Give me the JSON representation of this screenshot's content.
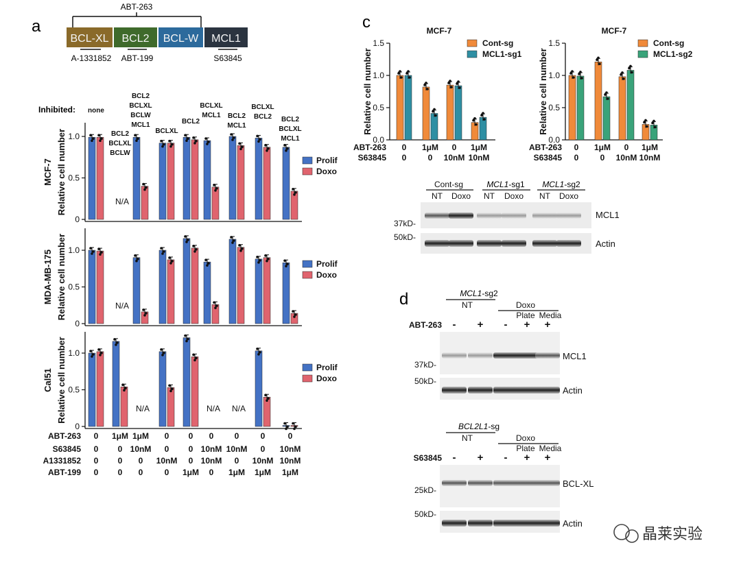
{
  "panels": {
    "a": "a",
    "c": "c",
    "d": "d"
  },
  "target_diagram": {
    "drug_top": "ABT-263",
    "proteins": [
      {
        "label": "BCL-XL",
        "color": "#8a6a2a"
      },
      {
        "label": "BCL2",
        "color": "#3f6a2b"
      },
      {
        "label": "BCL-W",
        "color": "#2c6a9c"
      },
      {
        "label": "MCL1",
        "color": "#2b3440"
      }
    ],
    "drug_bottom": [
      "A-1331852",
      "ABT-199",
      "S63845"
    ]
  },
  "colors": {
    "prolif": "#4472c4",
    "doxo": "#e0646e",
    "cont": "#f08a3a",
    "sg1": "#2f8fa3",
    "sg2": "#3aa37a"
  },
  "inhibited_label": "Inhibited:",
  "inhibited": [
    "none",
    "BCL2\nBCLXL\nBCLW",
    "BCL2\nBCLXL\nBCLW\nMCL1",
    "BCLXL",
    "BCL2",
    "BCLXL\nMCL1",
    "BCL2\nMCL1",
    "BCLXL\nBCL2",
    "BCL2\nBCLXL\nMCL1"
  ],
  "legend_a": [
    "Prolif",
    "Doxo"
  ],
  "ylabel_a": "Relative cell number",
  "na": "N/A",
  "conditions_a": {
    "rows": [
      "ABT-263",
      "S63845",
      "A1331852",
      "ABT-199"
    ],
    "values": [
      [
        "0",
        "1μM",
        "1μM",
        "0",
        "0",
        "0",
        "0",
        "0",
        "0"
      ],
      [
        "0",
        "0",
        "10nM",
        "0",
        "0",
        "10nM",
        "10nM",
        "0",
        "10nM"
      ],
      [
        "0",
        "0",
        "0",
        "10nM",
        "0",
        "10nM",
        "0",
        "10nM",
        "10nM"
      ],
      [
        "0",
        "0",
        "0",
        "0",
        "1μM",
        "0",
        "1μM",
        "1μM",
        "1μM"
      ]
    ]
  },
  "chart_data": [
    {
      "type": "bar",
      "title": "MCF-7",
      "ylabel": "Relative cell number",
      "ylim": [
        0,
        1.1
      ],
      "yticks": [
        "0",
        "0.5",
        "1.0"
      ],
      "series": [
        {
          "name": "Prolif",
          "values": [
            0.99,
            null,
            0.99,
            0.92,
            0.99,
            0.95,
            1.0,
            0.98,
            0.87
          ]
        },
        {
          "name": "Doxo",
          "values": [
            0.99,
            null,
            0.4,
            0.92,
            0.96,
            0.39,
            0.89,
            0.87,
            0.34
          ]
        }
      ]
    },
    {
      "type": "bar",
      "title": "MDA-MB-175",
      "ylabel": "Relative cell number",
      "ylim": [
        0,
        1.3
      ],
      "yticks": [
        "0",
        "0.5",
        "1.0"
      ],
      "series": [
        {
          "name": "Prolif",
          "values": [
            1.0,
            null,
            0.9,
            1.0,
            1.16,
            0.84,
            1.15,
            0.88,
            0.83
          ]
        },
        {
          "name": "Doxo",
          "values": [
            0.99,
            null,
            0.16,
            0.87,
            1.03,
            0.26,
            1.04,
            0.9,
            0.14
          ]
        }
      ]
    },
    {
      "type": "bar",
      "title": "Cal51",
      "ylabel": "Relative cell number",
      "ylim": [
        0,
        1.3
      ],
      "yticks": [
        "0",
        "0.5",
        "1.0"
      ],
      "series": [
        {
          "name": "Prolif",
          "values": [
            1.0,
            1.16,
            null,
            1.02,
            1.21,
            null,
            null,
            1.03,
            0.0
          ]
        },
        {
          "name": "Doxo",
          "values": [
            1.02,
            0.54,
            null,
            0.53,
            0.95,
            null,
            null,
            0.4,
            0.0
          ]
        }
      ]
    },
    {
      "type": "bar",
      "title": "MCF-7",
      "ylabel": "Relative cell number",
      "ylim": [
        0,
        1.5
      ],
      "yticks": [
        "0.0",
        "0.5",
        "1.0",
        "1.5"
      ],
      "legend": [
        "Cont-sg",
        "MCL1-sg1"
      ],
      "series": [
        {
          "name": "Cont-sg",
          "values": [
            1.0,
            0.82,
            0.85,
            0.27
          ]
        },
        {
          "name": "MCL1-sg1",
          "values": [
            1.0,
            0.41,
            0.84,
            0.35
          ]
        }
      ],
      "conditions": {
        "rows": [
          "ABT-263",
          "S63845"
        ],
        "values": [
          [
            "0",
            "1μM",
            "0",
            "1μM"
          ],
          [
            "0",
            "0",
            "10nM",
            "10nM"
          ]
        ]
      }
    },
    {
      "type": "bar",
      "title": "MCF-7",
      "ylabel": "Relative cell number",
      "ylim": [
        0,
        1.5
      ],
      "yticks": [
        "0.0",
        "0.5",
        "1.0",
        "1.5"
      ],
      "legend": [
        "Cont-sg",
        "MCL1-sg2"
      ],
      "series": [
        {
          "name": "Cont-sg",
          "values": [
            1.0,
            1.21,
            0.98,
            0.24
          ]
        },
        {
          "name": "MCL1-sg2",
          "values": [
            0.99,
            0.67,
            1.08,
            0.23
          ]
        }
      ],
      "conditions": {
        "rows": [
          "ABT-263",
          "S63845"
        ],
        "values": [
          [
            "0",
            "1μM",
            "0",
            "1μM"
          ],
          [
            "0",
            "0",
            "10nM",
            "10nM"
          ]
        ]
      }
    }
  ],
  "blot_c": {
    "groups": [
      "Cont-sg",
      "MCL1-sg1",
      "MCL1-sg2"
    ],
    "lanes": [
      "NT",
      "Doxo",
      "NT",
      "Doxo",
      "NT",
      "Doxo"
    ],
    "rows": [
      {
        "mw": "37kD-",
        "label": "MCL1"
      },
      {
        "mw": "50kD-",
        "label": "Actin"
      }
    ]
  },
  "blot_d1": {
    "title": "MCL1-sg2",
    "groups": [
      "NT",
      "Doxo"
    ],
    "subgroups": [
      "Plate",
      "Media"
    ],
    "drug": "ABT-263",
    "signs": [
      "-",
      "+",
      "-",
      "+",
      "+"
    ],
    "rows": [
      {
        "mw": "37kD-",
        "label": "MCL1"
      },
      {
        "mw": "50kD-",
        "label": "Actin"
      }
    ]
  },
  "blot_d2": {
    "title": "BCL2L1-sg",
    "groups": [
      "NT",
      "Doxo"
    ],
    "subgroups": [
      "Plate",
      "Media"
    ],
    "drug": "S63845",
    "signs": [
      "-",
      "+",
      "-",
      "+",
      "+"
    ],
    "rows": [
      {
        "mw": "25kD-",
        "label": "BCL-XL"
      },
      {
        "mw": "50kD-",
        "label": "Actin"
      }
    ]
  },
  "watermark": "晶莱实验"
}
